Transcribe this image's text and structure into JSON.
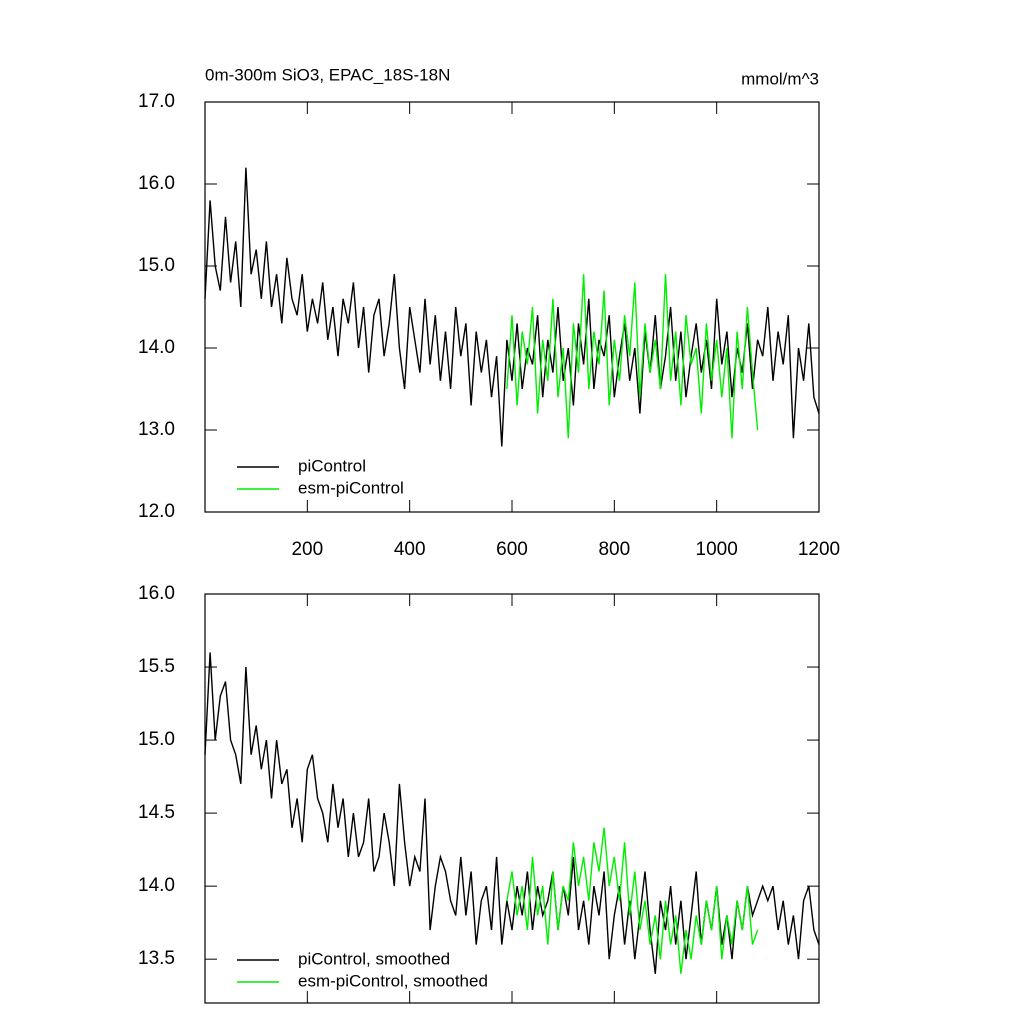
{
  "chart_data": [
    {
      "type": "line",
      "title": "0m-300m SiO3, EPAC_18S-18N",
      "units": "mmol/m^3",
      "x": [
        0,
        10,
        20,
        30,
        40,
        50,
        60,
        70,
        80,
        90,
        100,
        110,
        120,
        130,
        140,
        150,
        160,
        170,
        180,
        190,
        200,
        210,
        220,
        230,
        240,
        250,
        260,
        270,
        280,
        290,
        300,
        310,
        320,
        330,
        340,
        350,
        360,
        370,
        380,
        390,
        400,
        410,
        420,
        430,
        440,
        450,
        460,
        470,
        480,
        490,
        500,
        510,
        520,
        530,
        540,
        550,
        560,
        570,
        580,
        590,
        600,
        610,
        620,
        630,
        640,
        650,
        660,
        670,
        680,
        690,
        700,
        710,
        720,
        730,
        740,
        750,
        760,
        770,
        780,
        790,
        800,
        810,
        820,
        830,
        840,
        850,
        860,
        870,
        880,
        890,
        900,
        910,
        920,
        930,
        940,
        950,
        960,
        970,
        980,
        990,
        1000,
        1010,
        1020,
        1030,
        1040,
        1050,
        1060,
        1070,
        1080,
        1090,
        1100,
        1110,
        1120,
        1130,
        1140,
        1150,
        1160,
        1170,
        1180,
        1190,
        1200
      ],
      "series": [
        {
          "name": "piControl",
          "color": "#000000",
          "values": [
            14.6,
            15.8,
            15.0,
            14.7,
            15.6,
            14.8,
            15.3,
            14.5,
            16.2,
            14.9,
            15.2,
            14.6,
            15.3,
            14.5,
            14.9,
            14.3,
            15.1,
            14.6,
            14.4,
            14.9,
            14.2,
            14.6,
            14.3,
            14.8,
            14.1,
            14.5,
            13.9,
            14.6,
            14.3,
            14.8,
            14.0,
            14.5,
            13.7,
            14.4,
            14.6,
            13.9,
            14.3,
            14.9,
            14.0,
            13.5,
            14.5,
            14.1,
            13.7,
            14.6,
            13.8,
            14.4,
            13.6,
            14.2,
            13.5,
            14.5,
            13.9,
            14.3,
            13.3,
            14.2,
            13.7,
            14.1,
            13.4,
            13.9,
            12.8,
            14.1,
            13.6,
            14.3,
            13.5,
            14.0,
            13.8,
            14.4,
            13.4,
            14.1,
            13.7,
            14.5,
            13.6,
            14.0,
            13.3,
            14.3,
            13.8,
            14.6,
            13.5,
            14.1,
            13.9,
            14.4,
            13.4,
            13.9,
            14.3,
            13.6,
            14.0,
            13.2,
            14.2,
            13.7,
            14.4,
            13.5,
            13.9,
            14.5,
            13.6,
            14.2,
            13.4,
            13.9,
            14.3,
            13.7,
            14.1,
            13.5,
            14.6,
            13.8,
            14.2,
            13.4,
            14.0,
            13.7,
            14.3,
            13.5,
            14.1,
            13.9,
            14.5,
            13.6,
            14.2,
            13.8,
            14.4,
            12.9,
            14.0,
            13.6,
            14.3,
            13.4,
            13.2
          ]
        },
        {
          "name": "esm-piControl",
          "color": "#00ee00",
          "values": [
            null,
            null,
            null,
            null,
            null,
            null,
            null,
            null,
            null,
            null,
            null,
            null,
            null,
            null,
            null,
            null,
            null,
            null,
            null,
            null,
            null,
            null,
            null,
            null,
            null,
            null,
            null,
            null,
            null,
            null,
            null,
            null,
            null,
            null,
            null,
            null,
            null,
            null,
            null,
            null,
            null,
            null,
            null,
            null,
            null,
            null,
            null,
            null,
            null,
            null,
            null,
            null,
            null,
            null,
            null,
            null,
            null,
            null,
            null,
            13.5,
            14.4,
            13.3,
            14.2,
            13.8,
            14.5,
            13.2,
            14.1,
            13.6,
            14.6,
            13.4,
            14.0,
            12.9,
            14.3,
            13.7,
            14.9,
            13.5,
            14.2,
            13.8,
            14.7,
            13.3,
            14.1,
            13.6,
            14.4,
            13.9,
            14.8,
            13.4,
            14.3,
            13.7,
            14.1,
            13.5,
            14.9,
            13.6,
            14.2,
            13.3,
            14.4,
            13.8,
            14.0,
            13.2,
            14.3,
            13.6,
            14.1,
            13.4,
            14.0,
            12.9,
            14.2,
            13.5,
            14.5,
            13.7,
            13.0,
            null,
            null,
            null,
            null,
            null,
            null,
            null,
            null,
            null,
            null,
            null,
            null
          ]
        }
      ],
      "xlim": [
        0,
        1200
      ],
      "xticks": [
        200,
        400,
        600,
        800,
        1000,
        1200
      ],
      "xtick_labels": true,
      "ylim": [
        12,
        17
      ],
      "yticks": [
        {
          "value": 12,
          "label": "12.0"
        },
        {
          "value": 13,
          "label": "13.0"
        },
        {
          "value": 14,
          "label": "14.0"
        },
        {
          "value": 15,
          "label": "15.0"
        },
        {
          "value": 16,
          "label": "16.0"
        },
        {
          "value": 17,
          "label": "17.0"
        }
      ],
      "legend": "lower-left"
    },
    {
      "type": "line",
      "x": [
        0,
        10,
        20,
        30,
        40,
        50,
        60,
        70,
        80,
        90,
        100,
        110,
        120,
        130,
        140,
        150,
        160,
        170,
        180,
        190,
        200,
        210,
        220,
        230,
        240,
        250,
        260,
        270,
        280,
        290,
        300,
        310,
        320,
        330,
        340,
        350,
        360,
        370,
        380,
        390,
        400,
        410,
        420,
        430,
        440,
        450,
        460,
        470,
        480,
        490,
        500,
        510,
        520,
        530,
        540,
        550,
        560,
        570,
        580,
        590,
        600,
        610,
        620,
        630,
        640,
        650,
        660,
        670,
        680,
        690,
        700,
        710,
        720,
        730,
        740,
        750,
        760,
        770,
        780,
        790,
        800,
        810,
        820,
        830,
        840,
        850,
        860,
        870,
        880,
        890,
        900,
        910,
        920,
        930,
        940,
        950,
        960,
        970,
        980,
        990,
        1000,
        1010,
        1020,
        1030,
        1040,
        1050,
        1060,
        1070,
        1080,
        1090,
        1100,
        1110,
        1120,
        1130,
        1140,
        1150,
        1160,
        1170,
        1180,
        1190,
        1200
      ],
      "series": [
        {
          "name": "piControl, smoothed",
          "color": "#000000",
          "values": [
            14.9,
            15.6,
            15.0,
            15.3,
            15.4,
            15.0,
            14.9,
            14.7,
            15.5,
            14.9,
            15.1,
            14.8,
            15.0,
            14.6,
            15.0,
            14.7,
            14.8,
            14.4,
            14.6,
            14.3,
            14.8,
            14.9,
            14.6,
            14.5,
            14.3,
            14.7,
            14.4,
            14.6,
            14.2,
            14.5,
            14.2,
            14.3,
            14.6,
            14.1,
            14.2,
            14.5,
            14.3,
            14.0,
            14.7,
            14.3,
            14.0,
            14.2,
            14.1,
            14.6,
            13.7,
            14.0,
            14.2,
            14.1,
            13.9,
            13.8,
            14.2,
            13.8,
            14.1,
            13.6,
            13.9,
            14.0,
            13.7,
            14.2,
            13.6,
            13.9,
            13.7,
            14.0,
            13.8,
            14.1,
            13.7,
            14.0,
            13.8,
            13.9,
            14.1,
            13.7,
            14.0,
            13.8,
            14.2,
            13.7,
            13.9,
            13.6,
            14.0,
            13.8,
            14.1,
            13.5,
            13.8,
            14.0,
            13.6,
            13.9,
            13.5,
            13.8,
            14.1,
            13.7,
            13.4,
            13.9,
            13.7,
            14.0,
            13.6,
            13.9,
            13.5,
            13.8,
            14.1,
            13.6,
            13.9,
            13.7,
            14.0,
            13.6,
            13.8,
            13.5,
            13.9,
            13.7,
            14.0,
            13.8,
            13.9,
            14.0,
            13.9,
            14.0,
            13.7,
            13.9,
            13.6,
            13.8,
            13.5,
            13.9,
            14.0,
            13.7,
            13.6
          ]
        },
        {
          "name": "esm-piControl, smoothed",
          "color": "#00ee00",
          "values": [
            null,
            null,
            null,
            null,
            null,
            null,
            null,
            null,
            null,
            null,
            null,
            null,
            null,
            null,
            null,
            null,
            null,
            null,
            null,
            null,
            null,
            null,
            null,
            null,
            null,
            null,
            null,
            null,
            null,
            null,
            null,
            null,
            null,
            null,
            null,
            null,
            null,
            null,
            null,
            null,
            null,
            null,
            null,
            null,
            null,
            null,
            null,
            null,
            null,
            null,
            null,
            null,
            null,
            null,
            null,
            null,
            null,
            null,
            null,
            13.9,
            14.1,
            13.8,
            14.0,
            13.7,
            14.2,
            13.8,
            14.0,
            13.6,
            14.1,
            13.7,
            14.0,
            13.9,
            14.3,
            14.0,
            14.2,
            13.9,
            14.3,
            14.1,
            14.4,
            14.0,
            14.2,
            13.9,
            14.3,
            13.8,
            14.1,
            13.7,
            13.9,
            13.6,
            13.8,
            13.5,
            13.9,
            13.6,
            13.8,
            13.4,
            13.7,
            13.5,
            13.8,
            13.6,
            13.9,
            13.7,
            14.0,
            13.5,
            13.8,
            13.6,
            13.9,
            13.7,
            14.0,
            13.6,
            13.7,
            null,
            null,
            null,
            null,
            null,
            null,
            null,
            null,
            null,
            null,
            null,
            null
          ]
        }
      ],
      "xlim": [
        0,
        1200
      ],
      "xticks": [
        200,
        400,
        600,
        800,
        1000,
        1200
      ],
      "xtick_labels": false,
      "ylim": [
        13.2,
        16
      ],
      "yticks": [
        {
          "value": 13.5,
          "label": "13.5"
        },
        {
          "value": 14,
          "label": "14.0"
        },
        {
          "value": 14.5,
          "label": "14.5"
        },
        {
          "value": 15,
          "label": "15.0"
        },
        {
          "value": 15.5,
          "label": "15.5"
        },
        {
          "value": 16,
          "label": "16.0"
        }
      ],
      "legend": "lower-left"
    }
  ]
}
